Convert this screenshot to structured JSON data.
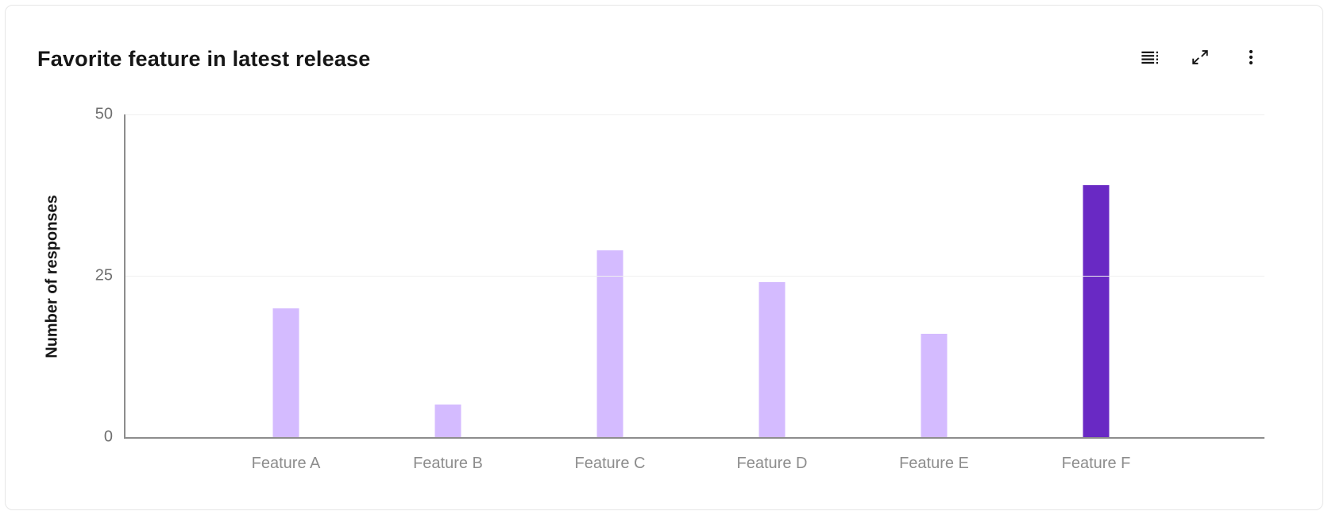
{
  "header": {
    "title": "Favorite feature in latest release"
  },
  "toolbar": {
    "icons": [
      "data-table-icon",
      "maximize-icon",
      "overflow-menu-icon"
    ]
  },
  "chart_data": {
    "type": "bar",
    "title": "Favorite feature in latest release",
    "categories": [
      "Feature A",
      "Feature B",
      "Feature C",
      "Feature D",
      "Feature E",
      "Feature F"
    ],
    "values": [
      20,
      5,
      29,
      24,
      16,
      39
    ],
    "xlabel": "",
    "ylabel": "Number of responses",
    "ylim": [
      0,
      50
    ],
    "yticks": [
      0,
      25,
      50
    ],
    "grid": "horizontal",
    "legend_position": "none",
    "colors": {
      "bar": "#d4bbff",
      "highlight": "#6929c4",
      "axis_line": "#8d8d8d",
      "gridline": "#f0f0f0",
      "tick_text": "#6f6f6f",
      "category_text": "#8d8d8d",
      "title_text": "#161616"
    },
    "highlight_index": 5
  }
}
